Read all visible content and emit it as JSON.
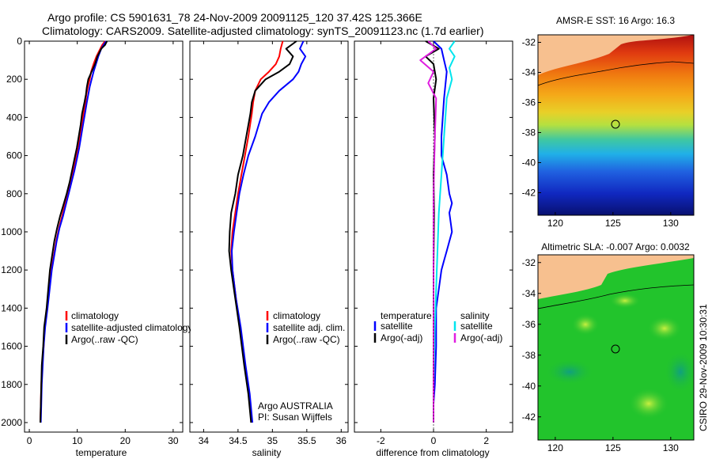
{
  "header": {
    "line1": "Argo profile: CS 5901631_78 24-Nov-2009 20091125_120 37.42S 125.366E",
    "line2": "Climatology: CARS2009. Satellite-adjusted climatology: synTS_20091123.nc (1.7d earlier)"
  },
  "side_label": "CSIRO 29-Nov-2009 10:30:31",
  "colors": {
    "climatology": "#ff0000",
    "satellite": "#0000ff",
    "argo": "#000000",
    "sat_cyan": "#00e5ee",
    "argo_magenta": "#e01ee0",
    "land": "#f7c08f"
  },
  "chart_data": [
    {
      "id": "temperature",
      "type": "line",
      "xlabel": "temperature",
      "ylabel": "",
      "xlim": [
        -1,
        32
      ],
      "ylim": [
        2050,
        0
      ],
      "xticks": [
        0,
        10,
        20,
        30
      ],
      "yticks": [
        0,
        200,
        400,
        600,
        800,
        1000,
        1200,
        1400,
        1600,
        1800,
        2000
      ],
      "legend": [
        "climatology",
        "satellite-adjusted climatology",
        "Argo(..raw -QC)"
      ],
      "series": [
        {
          "name": "climatology",
          "color": "climatology",
          "x": [
            15.8,
            15.2,
            14.8,
            14.0,
            13.4,
            12.9,
            12.6,
            12.2,
            11.9,
            11.7,
            11.3,
            10.9,
            10.5,
            10.1,
            9.6,
            9.1,
            8.6,
            8.0,
            7.4,
            6.8,
            6.2,
            5.6,
            4.6,
            3.7,
            3.2,
            3.0,
            2.7,
            2.5,
            2.4,
            2.3
          ],
          "y": [
            0,
            20,
            40,
            80,
            120,
            160,
            200,
            240,
            280,
            320,
            380,
            440,
            500,
            560,
            620,
            680,
            740,
            800,
            860,
            920,
            980,
            1050,
            1200,
            1400,
            1500,
            1600,
            1700,
            1800,
            1900,
            2000
          ]
        },
        {
          "name": "satellite-adjusted climatology",
          "color": "satellite",
          "x": [
            16.0,
            15.5,
            15.0,
            14.4,
            13.9,
            13.4,
            13.0,
            12.6,
            12.3,
            12.0,
            11.6,
            11.2,
            10.8,
            10.4,
            9.9,
            9.4,
            8.8,
            8.2,
            7.6,
            7.0,
            6.3,
            5.7,
            4.7,
            3.8,
            3.3,
            3.0,
            2.8,
            2.6,
            2.5,
            2.4
          ],
          "y": [
            0,
            20,
            40,
            80,
            120,
            160,
            200,
            240,
            280,
            320,
            380,
            440,
            500,
            560,
            620,
            680,
            740,
            800,
            860,
            920,
            980,
            1050,
            1200,
            1400,
            1500,
            1600,
            1700,
            1800,
            1900,
            2000
          ]
        },
        {
          "name": "Argo(..raw -QC)",
          "color": "argo",
          "x": [
            16.2,
            15.8,
            15.0,
            14.2,
            13.7,
            13.0,
            12.3,
            12.0,
            11.8,
            11.5,
            11.0,
            10.7,
            10.3,
            9.9,
            9.4,
            8.9,
            8.4,
            7.8,
            7.1,
            6.4,
            5.8,
            5.2,
            4.3,
            3.6,
            3.1,
            2.9,
            2.6,
            2.5,
            2.4,
            2.3
          ],
          "y": [
            0,
            20,
            40,
            80,
            120,
            160,
            200,
            240,
            280,
            320,
            380,
            440,
            500,
            560,
            620,
            680,
            740,
            800,
            860,
            920,
            980,
            1050,
            1200,
            1400,
            1500,
            1600,
            1700,
            1800,
            1900,
            2000
          ]
        }
      ]
    },
    {
      "id": "salinity",
      "type": "line",
      "xlabel": "salinity",
      "ylabel": "",
      "xlim": [
        33.8,
        36.1
      ],
      "ylim": [
        2050,
        0
      ],
      "xticks": [
        34,
        34.5,
        35,
        35.5,
        36
      ],
      "legend": [
        "climatology",
        "satellite adj. clim.",
        "Argo(..raw -QC)"
      ],
      "annotation": [
        "Argo AUSTRALIA",
        "PI: Susan Wijffels"
      ],
      "series": [
        {
          "name": "climatology",
          "color": "climatology",
          "x": [
            35.15,
            35.12,
            35.1,
            35.05,
            34.95,
            34.83,
            34.75,
            34.72,
            34.7,
            34.65,
            34.6,
            34.55,
            34.5,
            34.46,
            34.42,
            34.4,
            34.42,
            34.47,
            34.53,
            34.6,
            34.66,
            34.7
          ],
          "y": [
            0,
            40,
            80,
            120,
            160,
            200,
            260,
            320,
            380,
            500,
            600,
            700,
            800,
            900,
            1000,
            1100,
            1200,
            1350,
            1500,
            1700,
            1850,
            2000
          ]
        },
        {
          "name": "satellite adj. clim.",
          "color": "satellite",
          "x": [
            35.45,
            35.4,
            35.48,
            35.42,
            35.38,
            35.3,
            35.1,
            34.95,
            34.85,
            34.75,
            34.65,
            34.58,
            34.52,
            34.48,
            34.44,
            34.41,
            34.42,
            34.47,
            34.54,
            34.61,
            34.67,
            34.71
          ],
          "y": [
            0,
            40,
            80,
            120,
            160,
            200,
            260,
            320,
            380,
            500,
            600,
            700,
            800,
            900,
            1000,
            1100,
            1200,
            1350,
            1500,
            1700,
            1850,
            2000
          ]
        },
        {
          "name": "Argo(..raw -QC)",
          "color": "argo",
          "x": [
            35.35,
            35.2,
            35.3,
            35.25,
            35.1,
            34.9,
            34.75,
            34.7,
            34.68,
            34.62,
            34.57,
            34.5,
            34.46,
            34.4,
            34.38,
            34.37,
            34.4,
            34.46,
            34.52,
            34.59,
            34.65,
            34.69
          ],
          "y": [
            0,
            40,
            80,
            120,
            160,
            200,
            260,
            320,
            380,
            500,
            600,
            700,
            800,
            900,
            1000,
            1100,
            1200,
            1350,
            1500,
            1700,
            1850,
            2000
          ]
        }
      ]
    },
    {
      "id": "difference",
      "type": "line",
      "xlabel": "difference from climatology",
      "ylabel": "",
      "xlim": [
        -3,
        3
      ],
      "ylim": [
        2050,
        0
      ],
      "xticks": [
        -2,
        0,
        2
      ],
      "legend": [
        {
          "group": "temperature",
          "items": [
            "satellite",
            "Argo(-adj)"
          ]
        },
        {
          "group": "salinity",
          "items": [
            "satellite",
            "Argo(-adj)"
          ]
        }
      ],
      "series": [
        {
          "name": "temperature satellite",
          "color": "satellite",
          "x": [
            0.0,
            0.3,
            0.4,
            0.5,
            0.4,
            0.3,
            0.3,
            0.5,
            0.6,
            0.7,
            0.6,
            0.7,
            0.6,
            0.5,
            0.4,
            0.3,
            0.2,
            0.1,
            0.1,
            0.05,
            0.0,
            0.0
          ],
          "y": [
            0,
            40,
            100,
            160,
            300,
            500,
            600,
            700,
            800,
            850,
            900,
            1000,
            1050,
            1100,
            1150,
            1200,
            1300,
            1400,
            1600,
            1800,
            1900,
            2000
          ]
        },
        {
          "name": "temperature Argo(-adj)",
          "color": "argo",
          "x": [
            -0.3,
            0.2,
            -0.3,
            0.0,
            0.1,
            0.0,
            0.05,
            0.0,
            0.02,
            0.0,
            0.0,
            0.0,
            0.0
          ],
          "y": [
            0,
            40,
            80,
            120,
            200,
            300,
            500,
            700,
            900,
            1200,
            1500,
            1800,
            2000
          ]
        },
        {
          "name": "salinity satellite",
          "color": "sat_cyan",
          "x": [
            0.8,
            0.6,
            0.8,
            0.6,
            0.7,
            0.5,
            0.4,
            0.3,
            0.2,
            0.15,
            0.1,
            0.05,
            0.0,
            0.0
          ],
          "y": [
            0,
            40,
            80,
            140,
            200,
            300,
            500,
            700,
            900,
            1100,
            1300,
            1500,
            1800,
            2000
          ]
        },
        {
          "name": "salinity Argo(-adj)",
          "color": "argo_magenta",
          "x": [
            -0.2,
            0.1,
            -0.5,
            0.0,
            -0.2,
            0.1,
            0.05,
            0.0,
            0.0,
            0.0
          ],
          "y": [
            0,
            40,
            100,
            160,
            220,
            300,
            500,
            800,
            1200,
            2000
          ]
        }
      ]
    },
    {
      "id": "sst_map",
      "type": "heatmap",
      "title": "AMSR-E SST: 16  Argo: 16.3",
      "xlim": [
        118.5,
        132
      ],
      "ylim": [
        -43.5,
        -31.5
      ],
      "xticks": [
        120,
        125,
        130
      ],
      "yticks": [
        -32,
        -34,
        -36,
        -38,
        -40,
        -42
      ],
      "marker": {
        "lon": 125.366,
        "lat": -37.42
      }
    },
    {
      "id": "sla_map",
      "type": "heatmap",
      "title": "Altimetric SLA: -0.007  Argo: 0.0032",
      "xlim": [
        118.5,
        132
      ],
      "ylim": [
        -43.5,
        -31.5
      ],
      "xticks": [
        120,
        125,
        130
      ],
      "yticks": [
        -32,
        -34,
        -36,
        -38,
        -40,
        -42
      ],
      "marker": {
        "lon": 125.366,
        "lat": -37.42
      }
    }
  ]
}
